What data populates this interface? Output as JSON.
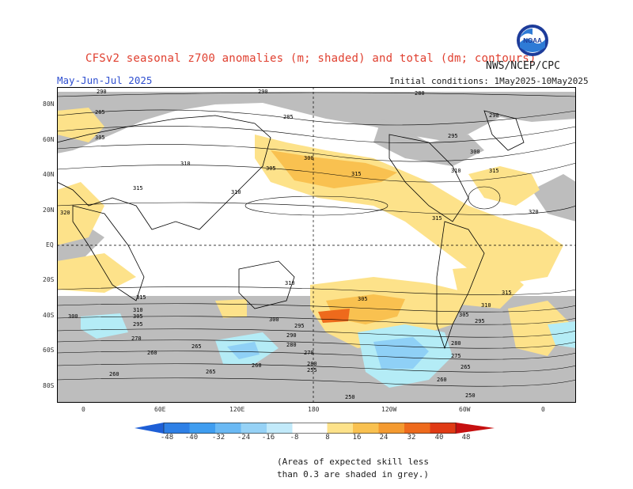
{
  "header": {
    "title": "CFSv2 seasonal z700 anomalies (m; shaded) and total (dm; contours)",
    "agency": "NWS/NCEP/CPC",
    "season": "May-Jun-Jul 2025",
    "initial_conditions": "Initial conditions: 1May2025-10May2025",
    "logo_text": "NOAA"
  },
  "map": {
    "lat_labels": [
      "80N",
      "60N",
      "40N",
      "20N",
      "EQ",
      "20S",
      "40S",
      "60S",
      "80S"
    ],
    "lon_labels": [
      "0",
      "60E",
      "120E",
      "180",
      "120W",
      "60W",
      "0"
    ],
    "contour_labels": [
      "290",
      "280",
      "285",
      "305",
      "315",
      "310",
      "320",
      "300",
      "295",
      "270",
      "260",
      "255",
      "250",
      "265",
      "275"
    ],
    "colors": {
      "skill_grey": "#bdbdbd",
      "pos_8": "#fde28a",
      "pos_16": "#f9c150",
      "pos_24": "#f49a30",
      "pos_32": "#ee6a1c",
      "neg_8": "#b4ecf6",
      "neg_16": "#8fd0f6",
      "neg_24": "#5ea8ea"
    }
  },
  "colorbar": {
    "ticks": [
      "-48",
      "-40",
      "-32",
      "-24",
      "-16",
      "-8",
      "8",
      "16",
      "24",
      "32",
      "40",
      "48"
    ],
    "colors": [
      "#1e5fd6",
      "#2e80e6",
      "#3f9df0",
      "#6ab9f4",
      "#96d2f6",
      "#c2eafa",
      "#ffffff",
      "#fde28a",
      "#f9c150",
      "#f49a30",
      "#ee6a1c",
      "#e03a14",
      "#c61010"
    ]
  },
  "note": {
    "line1": "(Areas of expected skill less",
    "line2": "than 0.3 are shaded in grey.)"
  }
}
